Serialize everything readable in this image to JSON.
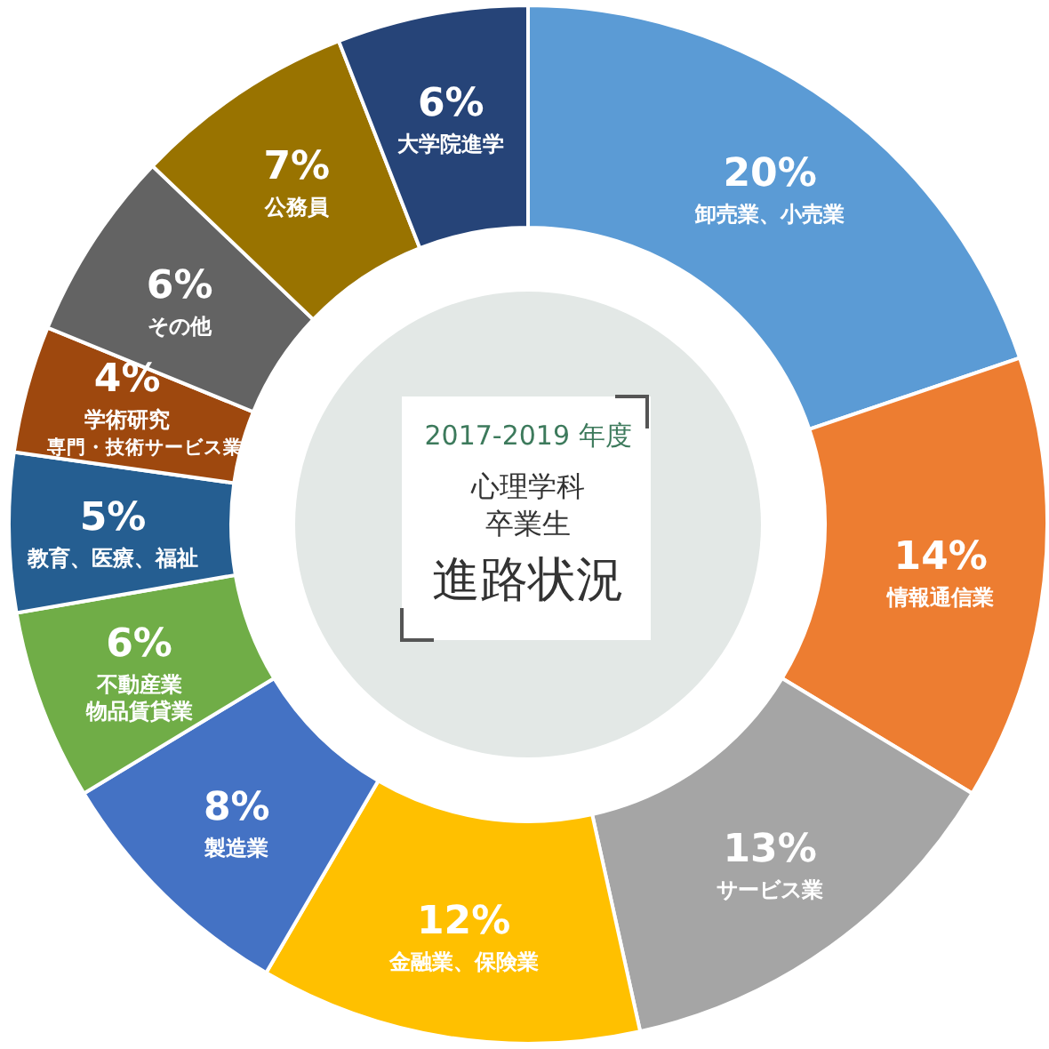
{
  "chart_data": {
    "type": "donut",
    "subtitle": "2017-2019 年度",
    "annotations": [
      "心理学科",
      "卒業生"
    ],
    "title": "進路状況",
    "categories": [
      "卸売業、小売業",
      "情報通信業",
      "サービス業",
      "金融業、保険業",
      "製造業",
      "不動産業物品賃貸業",
      "教育、医療、福祉",
      "学術研究専門・技術サービス業",
      "その他",
      "公務員",
      "大学院進学"
    ],
    "values": [
      20,
      14,
      13,
      12,
      8,
      6,
      5,
      4,
      6,
      7,
      6
    ],
    "value_labels": [
      "20%",
      "14%",
      "13%",
      "12%",
      "8%",
      "6%",
      "5%",
      "4%",
      "6%",
      "7%",
      "6%"
    ],
    "colors": [
      "#5b9bd5",
      "#ed7d31",
      "#a5a5a5",
      "#ffc000",
      "#4472c4",
      "#70ad47",
      "#255e91",
      "#9e480e",
      "#636363",
      "#997300",
      "#264478"
    ]
  }
}
